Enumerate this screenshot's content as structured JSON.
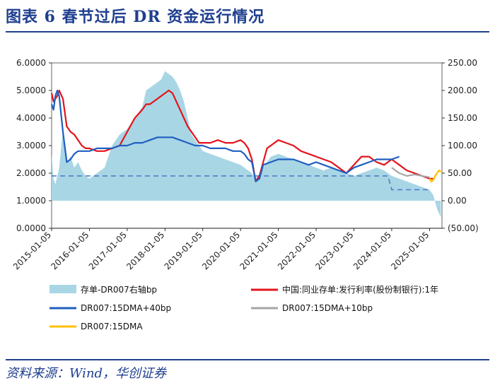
{
  "figure": {
    "title": "图表 6   春节过后 DR 资金运行情况",
    "source": "资料来源：Wind，华创证券"
  },
  "colors": {
    "title_blue": "#1f3f8f",
    "area": "#a9d6e5",
    "red": "#e3141b",
    "blue": "#1f5fbf",
    "blue_dashed": "#4f7fc7",
    "grey": "#a6a6a6",
    "yellow": "#ffc000"
  },
  "chart_data": {
    "type": "line",
    "x_axis": {
      "start": 2015.0,
      "end": 2025.33,
      "tick_labels": [
        "2015-01-05",
        "2016-01-05",
        "2017-01-05",
        "2018-01-05",
        "2019-01-05",
        "2020-01-05",
        "2021-01-05",
        "2022-01-05",
        "2023-01-05",
        "2024-01-05",
        "2025-01-05"
      ],
      "tick_positions": [
        2015.0,
        2016.0,
        2017.0,
        2018.0,
        2019.0,
        2020.0,
        2021.0,
        2022.0,
        2023.0,
        2024.0,
        2025.0
      ]
    },
    "y_left": {
      "min": 0,
      "max": 6,
      "ticks": [
        "0.0000",
        "1.0000",
        "2.0000",
        "3.0000",
        "4.0000",
        "5.0000",
        "6.0000"
      ]
    },
    "y_right": {
      "min": -50,
      "max": 250,
      "ticks": [
        "(50.00)",
        "0.00",
        "50.00",
        "100.00",
        "150.00",
        "200.00",
        "250.00"
      ]
    },
    "series": [
      {
        "name": "存单-DR007右轴bp",
        "type": "area",
        "axis": "right",
        "x": [
          2015.0,
          2015.05,
          2015.1,
          2015.15,
          2015.2,
          2015.3,
          2015.4,
          2015.5,
          2015.6,
          2015.7,
          2015.8,
          2015.9,
          2016.0,
          2016.2,
          2016.4,
          2016.6,
          2016.8,
          2017.0,
          2017.2,
          2017.4,
          2017.5,
          2017.7,
          2017.9,
          2018.0,
          2018.1,
          2018.2,
          2018.3,
          2018.4,
          2018.5,
          2018.6,
          2018.7,
          2018.8,
          2018.9,
          2019.0,
          2019.2,
          2019.4,
          2019.6,
          2019.8,
          2020.0,
          2020.1,
          2020.2,
          2020.3,
          2020.4,
          2020.6,
          2020.8,
          2021.0,
          2021.2,
          2021.4,
          2021.6,
          2021.8,
          2022.0,
          2022.2,
          2022.4,
          2022.6,
          2022.8,
          2023.0,
          2023.2,
          2023.4,
          2023.6,
          2023.8,
          2024.0,
          2024.2,
          2024.4,
          2024.6,
          2024.8,
          2025.0,
          2025.1,
          2025.2,
          2025.3
        ],
        "values": [
          85,
          40,
          30,
          45,
          60,
          130,
          70,
          80,
          60,
          70,
          55,
          45,
          40,
          50,
          60,
          100,
          120,
          130,
          150,
          170,
          200,
          210,
          220,
          235,
          230,
          225,
          215,
          200,
          180,
          150,
          120,
          110,
          100,
          90,
          85,
          80,
          75,
          70,
          65,
          60,
          55,
          50,
          40,
          60,
          80,
          85,
          80,
          75,
          70,
          65,
          60,
          55,
          60,
          55,
          50,
          45,
          50,
          55,
          60,
          55,
          45,
          40,
          35,
          30,
          25,
          20,
          10,
          -15,
          -30
        ]
      },
      {
        "name": "中国:同业存单:发行利率(股份制银行):1年",
        "type": "line",
        "axis": "left",
        "x": [
          2015.0,
          2015.05,
          2015.1,
          2015.15,
          2015.2,
          2015.3,
          2015.4,
          2015.5,
          2015.6,
          2015.7,
          2015.8,
          2015.9,
          2016.0,
          2016.2,
          2016.4,
          2016.6,
          2016.8,
          2017.0,
          2017.2,
          2017.4,
          2017.5,
          2017.6,
          2017.7,
          2017.8,
          2017.9,
          2018.0,
          2018.1,
          2018.2,
          2018.3,
          2018.4,
          2018.5,
          2018.6,
          2018.7,
          2018.8,
          2018.9,
          2019.0,
          2019.2,
          2019.4,
          2019.6,
          2019.8,
          2020.0,
          2020.1,
          2020.2,
          2020.3,
          2020.4,
          2020.5,
          2020.6,
          2020.7,
          2020.8,
          2021.0,
          2021.2,
          2021.4,
          2021.6,
          2021.8,
          2022.0,
          2022.2,
          2022.4,
          2022.6,
          2022.8,
          2023.0,
          2023.2,
          2023.4,
          2023.6,
          2023.8,
          2024.0,
          2024.2,
          2024.4,
          2024.6,
          2024.8,
          2025.0,
          2025.1
        ],
        "values": [
          4.9,
          4.6,
          4.7,
          4.8,
          5.0,
          4.7,
          3.7,
          3.5,
          3.4,
          3.2,
          3.0,
          2.9,
          2.9,
          2.8,
          2.8,
          2.9,
          3.0,
          3.5,
          4.0,
          4.3,
          4.5,
          4.5,
          4.6,
          4.7,
          4.8,
          4.9,
          5.0,
          4.9,
          4.6,
          4.3,
          4.0,
          3.7,
          3.5,
          3.3,
          3.1,
          3.1,
          3.1,
          3.2,
          3.1,
          3.1,
          3.2,
          3.1,
          2.9,
          2.5,
          1.7,
          1.9,
          2.4,
          2.9,
          3.0,
          3.2,
          3.1,
          3.0,
          2.8,
          2.7,
          2.6,
          2.5,
          2.4,
          2.2,
          2.0,
          2.3,
          2.6,
          2.6,
          2.4,
          2.3,
          2.5,
          2.3,
          2.1,
          2.0,
          1.9,
          1.8,
          1.8
        ]
      },
      {
        "name": "DR007:15DMA+40bp",
        "type": "line",
        "axis": "left",
        "x": [
          2015.0,
          2015.05,
          2015.1,
          2015.15,
          2015.2,
          2015.3,
          2015.4,
          2015.5,
          2015.6,
          2015.7,
          2015.8,
          2015.9,
          2016.0,
          2016.2,
          2016.4,
          2016.6,
          2016.8,
          2017.0,
          2017.2,
          2017.4,
          2017.6,
          2017.8,
          2018.0,
          2018.2,
          2018.4,
          2018.6,
          2018.8,
          2019.0,
          2019.2,
          2019.4,
          2019.6,
          2019.8,
          2020.0,
          2020.1,
          2020.2,
          2020.3,
          2020.4,
          2020.5,
          2020.6,
          2020.8,
          2021.0,
          2021.2,
          2021.4,
          2021.6,
          2021.8,
          2022.0,
          2022.2,
          2022.4,
          2022.6,
          2022.8,
          2023.0,
          2023.2,
          2023.4,
          2023.6,
          2023.8,
          2024.0,
          2024.2
        ],
        "values": [
          4.5,
          4.3,
          4.8,
          5.0,
          4.8,
          3.5,
          2.4,
          2.5,
          2.7,
          2.8,
          2.8,
          2.8,
          2.8,
          2.9,
          2.9,
          2.9,
          3.0,
          3.0,
          3.1,
          3.1,
          3.2,
          3.3,
          3.3,
          3.3,
          3.2,
          3.1,
          3.0,
          3.0,
          2.9,
          2.9,
          2.9,
          2.8,
          2.8,
          2.7,
          2.5,
          2.4,
          1.7,
          1.8,
          2.3,
          2.4,
          2.5,
          2.5,
          2.5,
          2.4,
          2.3,
          2.4,
          2.3,
          2.2,
          2.1,
          2.0,
          2.2,
          2.3,
          2.4,
          2.5,
          2.5,
          2.5,
          2.6
        ]
      },
      {
        "name": "DR007:15DMA+10bp",
        "type": "line",
        "axis": "left",
        "x": [
          2024.0,
          2024.2,
          2024.4,
          2024.6,
          2024.8,
          2025.0
        ],
        "values": [
          2.2,
          2.0,
          1.9,
          1.95,
          1.9,
          1.85
        ]
      },
      {
        "name": "DR007:15DMA",
        "type": "line",
        "axis": "left",
        "x": [
          2025.0,
          2025.05,
          2025.1,
          2025.15,
          2025.2,
          2025.25,
          2025.3
        ],
        "values": [
          1.8,
          1.7,
          1.75,
          1.9,
          2.0,
          2.1,
          2.05
        ]
      },
      {
        "name": "reference-dashed",
        "type": "line",
        "axis": "left",
        "x": [
          2015.0,
          2023.9,
          2024.0,
          2025.0
        ],
        "values": [
          1.9,
          1.9,
          1.4,
          1.4
        ]
      }
    ],
    "legend": [
      {
        "label": "存单-DR007右轴bp",
        "kind": "area",
        "color_key": "area"
      },
      {
        "label": "中国:同业存单:发行利率(股份制银行):1年",
        "kind": "line",
        "color_key": "red"
      },
      {
        "label": "DR007:15DMA+40bp",
        "kind": "line",
        "color_key": "blue"
      },
      {
        "label": "DR007:15DMA+10bp",
        "kind": "line",
        "color_key": "grey"
      },
      {
        "label": "DR007:15DMA",
        "kind": "line",
        "color_key": "yellow"
      }
    ]
  }
}
